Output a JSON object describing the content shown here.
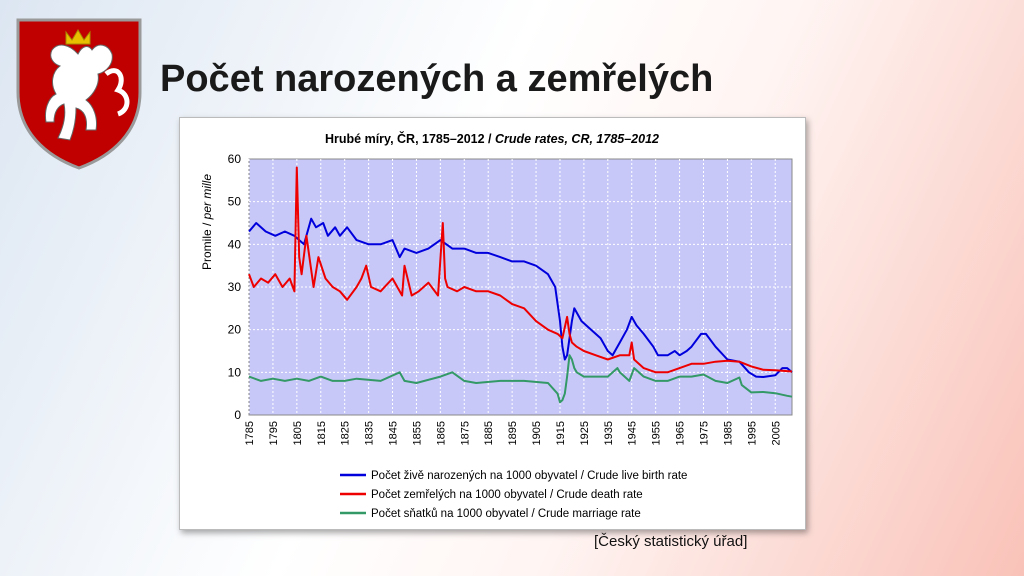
{
  "slide": {
    "title": "Počet narozených a zemřelých",
    "source": "[Český statistický úřad]"
  },
  "colors": {
    "birth": "#0000dd",
    "death": "#ee0000",
    "marriage": "#339966",
    "plot_bg": "#c8c8f8"
  },
  "chart_data": {
    "type": "line",
    "title_cs": "Hrubé míry, ČR, 1785–2012 / ",
    "title_en": "Crude rates, CR, 1785–2012",
    "ylabel_cs": "Promile / ",
    "ylabel_en": "per mille",
    "xlim": [
      1785,
      2012
    ],
    "ylim": [
      0,
      60
    ],
    "yticks": [
      0,
      10,
      20,
      30,
      40,
      50,
      60
    ],
    "xticks": [
      1785,
      1795,
      1805,
      1815,
      1825,
      1835,
      1845,
      1855,
      1865,
      1875,
      1885,
      1895,
      1905,
      1915,
      1925,
      1935,
      1945,
      1955,
      1965,
      1975,
      1985,
      1995,
      2005
    ],
    "grid": true,
    "legend_position": "bottom",
    "series": [
      {
        "name": "Počet živě narozených na 1000 obyvatel / Crude live birth rate",
        "color": "#0000dd",
        "x": [
          1785,
          1788,
          1792,
          1796,
          1800,
          1804,
          1806,
          1808,
          1811,
          1813,
          1816,
          1818,
          1821,
          1823,
          1826,
          1830,
          1835,
          1840,
          1845,
          1848,
          1850,
          1855,
          1860,
          1865,
          1870,
          1875,
          1880,
          1885,
          1890,
          1895,
          1900,
          1905,
          1910,
          1913,
          1915,
          1916,
          1917,
          1918,
          1920,
          1921,
          1924,
          1928,
          1932,
          1935,
          1937,
          1940,
          1943,
          1945,
          1947,
          1950,
          1954,
          1956,
          1960,
          1963,
          1965,
          1968,
          1970,
          1974,
          1976,
          1980,
          1985,
          1990,
          1994,
          1997,
          2000,
          2005,
          2008,
          2010,
          2012
        ],
        "y": [
          43,
          45,
          43,
          42,
          43,
          42,
          41,
          40,
          46,
          44,
          45,
          42,
          44,
          42,
          44,
          41,
          40,
          40,
          41,
          37,
          39,
          38,
          39,
          41,
          39,
          39,
          38,
          38,
          37,
          36,
          36,
          35,
          33,
          30,
          22,
          16,
          13,
          14,
          22,
          25,
          22,
          20,
          18,
          15,
          14,
          17,
          20,
          23,
          21,
          19,
          16,
          14,
          14,
          15,
          14,
          15,
          16,
          19,
          19,
          16,
          13,
          12.5,
          10,
          9,
          8.9,
          9.3,
          11,
          11,
          10
        ]
      },
      {
        "name": "Počet zemřelých na 1000 obyvatel / Crude death rate",
        "color": "#ee0000",
        "x": [
          1785,
          1787,
          1790,
          1793,
          1796,
          1799,
          1802,
          1804,
          1805,
          1806,
          1807,
          1809,
          1812,
          1814,
          1817,
          1820,
          1823,
          1826,
          1830,
          1832,
          1834,
          1836,
          1840,
          1845,
          1849,
          1850,
          1853,
          1856,
          1860,
          1864,
          1866,
          1867,
          1868,
          1872,
          1875,
          1880,
          1885,
          1890,
          1895,
          1900,
          1905,
          1910,
          1914,
          1916,
          1918,
          1919,
          1920,
          1922,
          1925,
          1930,
          1935,
          1940,
          1944,
          1945,
          1946,
          1950,
          1955,
          1960,
          1965,
          1970,
          1975,
          1980,
          1985,
          1990,
          1995,
          2000,
          2005,
          2012
        ],
        "y": [
          33,
          30,
          32,
          31,
          33,
          30,
          32,
          29,
          58,
          37,
          33,
          42,
          30,
          37,
          32,
          30,
          29,
          27,
          30,
          32,
          35,
          30,
          29,
          32,
          28,
          35,
          28,
          29,
          31,
          28,
          45,
          32,
          30,
          29,
          30,
          29,
          29,
          28,
          26,
          25,
          22,
          20,
          19,
          18,
          23,
          19,
          17,
          16,
          15,
          14,
          13,
          14,
          14,
          17,
          13,
          11,
          10,
          10,
          11,
          12,
          12,
          12.5,
          12.7,
          12.5,
          11.4,
          10.6,
          10.5,
          10.2
        ]
      },
      {
        "name": "Počet sňatků na 1000 obyvatel / Crude marriage rate",
        "color": "#339966",
        "x": [
          1785,
          1790,
          1795,
          1800,
          1805,
          1810,
          1815,
          1820,
          1825,
          1830,
          1840,
          1848,
          1850,
          1855,
          1865,
          1870,
          1875,
          1880,
          1890,
          1900,
          1910,
          1914,
          1915,
          1916,
          1917,
          1918,
          1919,
          1920,
          1921,
          1922,
          1925,
          1930,
          1935,
          1939,
          1940,
          1944,
          1946,
          1950,
          1955,
          1960,
          1965,
          1970,
          1975,
          1980,
          1985,
          1990,
          1991,
          1995,
          2000,
          2005,
          2010,
          2012
        ],
        "y": [
          9,
          8,
          8.5,
          8,
          8.5,
          8,
          9,
          8,
          8,
          8.5,
          8,
          10,
          8,
          7.5,
          9,
          10,
          8,
          7.5,
          8,
          8,
          7.5,
          5,
          3,
          3.5,
          5,
          9,
          14,
          13,
          11,
          10,
          9,
          9,
          9,
          11,
          10,
          8,
          11,
          9,
          8,
          8,
          9,
          9,
          9.5,
          8,
          7.5,
          8.8,
          7,
          5.3,
          5.4,
          5.1,
          4.5,
          4.3
        ]
      }
    ]
  }
}
